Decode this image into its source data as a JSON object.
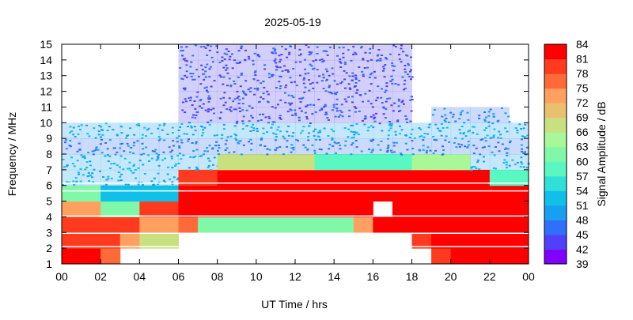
{
  "chart_data": {
    "type": "heatmap",
    "title": "2025-05-19",
    "xlabel": "UT Time / hrs",
    "ylabel": "Frequency / MHz",
    "colorbar_label": "Signal Amplitude / dB",
    "xlim": [
      0,
      24
    ],
    "ylim": [
      1,
      15
    ],
    "x_tick_labels": [
      "00",
      "02",
      "04",
      "06",
      "08",
      "10",
      "12",
      "14",
      "16",
      "18",
      "20",
      "22",
      "00"
    ],
    "y_tick_labels": [
      "1",
      "2",
      "3",
      "4",
      "5",
      "6",
      "7",
      "8",
      "9",
      "10",
      "11",
      "12",
      "13",
      "14",
      "15"
    ],
    "colorbar_ticks": [
      "39",
      "42",
      "45",
      "48",
      "51",
      "54",
      "57",
      "60",
      "63",
      "66",
      "69",
      "72",
      "75",
      "78",
      "81",
      "84"
    ],
    "color_range": [
      39,
      84
    ],
    "colors": [
      "#8000ff",
      "#5040f8",
      "#3070f8",
      "#18a0f0",
      "#10c0e8",
      "#30e0d8",
      "#58f8c0",
      "#80f8a8",
      "#a8f898",
      "#c8e080",
      "#eac070",
      "#ffa060",
      "#ff6a38",
      "#ff3a1e",
      "#ff0000"
    ],
    "values": [
      [
        81,
        81,
        75,
        null,
        null,
        null,
        null,
        null,
        null,
        null,
        null,
        null,
        null,
        null,
        null,
        null,
        null,
        null,
        null,
        78,
        81,
        81,
        81,
        81
      ],
      [
        78,
        78,
        78,
        72,
        66,
        66,
        null,
        null,
        null,
        null,
        null,
        null,
        null,
        null,
        null,
        null,
        null,
        null,
        78,
        81,
        81,
        81,
        81,
        81
      ],
      [
        78,
        78,
        78,
        78,
        72,
        72,
        75,
        60,
        60,
        60,
        60,
        60,
        60,
        60,
        60,
        72,
        81,
        81,
        81,
        81,
        81,
        81,
        81,
        81
      ],
      [
        72,
        72,
        60,
        60,
        78,
        78,
        81,
        81,
        81,
        81,
        81,
        81,
        81,
        81,
        81,
        81,
        null,
        81,
        81,
        81,
        81,
        81,
        81,
        81
      ],
      [
        60,
        60,
        51,
        51,
        51,
        51,
        81,
        81,
        81,
        81,
        81,
        81,
        81,
        81,
        81,
        81,
        81,
        81,
        81,
        81,
        81,
        81,
        81,
        81
      ],
      [
        48,
        48,
        48,
        48,
        48,
        48,
        78,
        78,
        81,
        81,
        81,
        81,
        81,
        81,
        81,
        81,
        81,
        81,
        81,
        81,
        81,
        81,
        57,
        57
      ],
      [
        48,
        48,
        48,
        48,
        48,
        48,
        48,
        48,
        66,
        66,
        66,
        66,
        66,
        57,
        57,
        57,
        57,
        57,
        63,
        63,
        63,
        48,
        48,
        48
      ],
      [
        45,
        45,
        45,
        45,
        45,
        45,
        45,
        45,
        45,
        45,
        45,
        45,
        45,
        45,
        45,
        45,
        45,
        45,
        45,
        45,
        45,
        45,
        45,
        45
      ],
      [
        48,
        48,
        48,
        48,
        48,
        48,
        48,
        48,
        48,
        48,
        48,
        48,
        48,
        48,
        48,
        48,
        48,
        48,
        48,
        48,
        48,
        48,
        48,
        48
      ],
      [
        null,
        null,
        null,
        null,
        null,
        null,
        42,
        42,
        42,
        42,
        42,
        42,
        42,
        42,
        42,
        42,
        42,
        42,
        null,
        45,
        45,
        45,
        45,
        null
      ],
      [
        null,
        null,
        null,
        null,
        null,
        null,
        42,
        42,
        42,
        42,
        42,
        42,
        42,
        42,
        42,
        42,
        42,
        42,
        null,
        null,
        null,
        null,
        null,
        null
      ],
      [
        null,
        null,
        null,
        null,
        null,
        null,
        42,
        42,
        42,
        42,
        42,
        42,
        42,
        42,
        42,
        42,
        42,
        42,
        null,
        null,
        null,
        null,
        null,
        null
      ],
      [
        null,
        null,
        null,
        null,
        null,
        null,
        42,
        42,
        42,
        42,
        42,
        42,
        42,
        42,
        42,
        42,
        42,
        42,
        null,
        null,
        null,
        null,
        null,
        null
      ],
      [
        null,
        null,
        null,
        null,
        null,
        null,
        42,
        42,
        42,
        42,
        42,
        42,
        42,
        42,
        42,
        42,
        42,
        42,
        null,
        null,
        null,
        null,
        null,
        null
      ]
    ]
  }
}
